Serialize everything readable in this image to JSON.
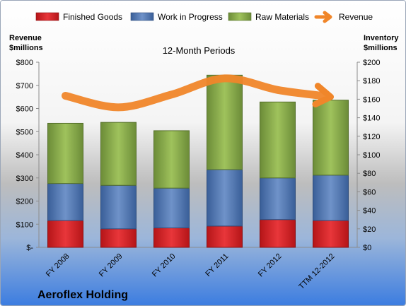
{
  "chart_data": {
    "type": "bar",
    "stacked": true,
    "title": "12-Month Periods",
    "company": "Aeroflex Holding",
    "categories": [
      "FY 2008",
      "FY 2009",
      "FY 2010",
      "FY 2011",
      "FY 2012",
      "TTM 12-2012"
    ],
    "series": [
      {
        "name": "Finished Goods",
        "axis": "right",
        "color": "#e0262b",
        "values": [
          29,
          20,
          21,
          23,
          30,
          29
        ]
      },
      {
        "name": "Work in Progress",
        "axis": "right",
        "color": "#4f78b8",
        "values": [
          40,
          47,
          43,
          61,
          45,
          49
        ]
      },
      {
        "name": "Raw Materials",
        "axis": "right",
        "color": "#8aad4e",
        "values": [
          65,
          68,
          62,
          102,
          82,
          81
        ]
      }
    ],
    "line_series": {
      "name": "Revenue",
      "axis": "left",
      "color": "#f0862a",
      "values": [
        655,
        605,
        660,
        730,
        680,
        650
      ]
    },
    "left_axis": {
      "label_lines": [
        "Revenue",
        "$millions"
      ],
      "range": [
        0,
        800
      ],
      "step": 100,
      "ticks": [
        "$-",
        "$100",
        "$200",
        "$300",
        "$400",
        "$500",
        "$600",
        "$700",
        "$800"
      ]
    },
    "right_axis": {
      "label_lines": [
        "Inventory",
        "$millions"
      ],
      "range": [
        0,
        200
      ],
      "step": 20,
      "ticks": [
        "$0",
        "$20",
        "$40",
        "$60",
        "$80",
        "$100",
        "$120",
        "$140",
        "$160",
        "$180",
        "$200"
      ]
    },
    "legend": {
      "placement": "top",
      "entries": [
        "Finished Goods",
        "Work in Progress",
        "Raw Materials",
        "Revenue"
      ]
    },
    "grid": false
  }
}
